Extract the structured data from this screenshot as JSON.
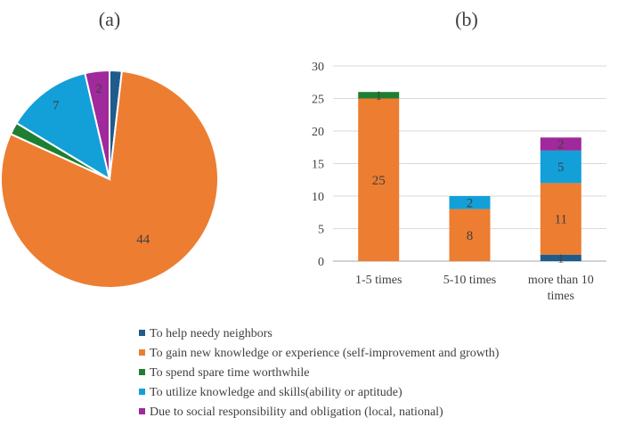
{
  "colors": {
    "navy": "#1F5C8B",
    "orange": "#ED7D31",
    "green": "#1E7F33",
    "cyan": "#13A0D8",
    "magenta": "#A0299B",
    "axis": "#A6A6A6",
    "grid": "#D9D9D9",
    "text": "#404040"
  },
  "chart_data": [
    {
      "type": "pie",
      "title": "(a)",
      "labels": [
        "To help needy neighbors",
        "To gain new knowledge or experience (self-improvement and growth)",
        "To spend spare time worthwhile",
        "To utilize knowledge and skills(ability or aptitude)",
        "Due to social responsibility and obligation (local, national)"
      ],
      "values": [
        1,
        44,
        1,
        7,
        2
      ],
      "data_labels": [
        "",
        "44",
        "",
        "7",
        "2"
      ],
      "colors": [
        "#1F5C8B",
        "#ED7D31",
        "#1E7F33",
        "#13A0D8",
        "#A0299B"
      ]
    },
    {
      "type": "bar",
      "stacked": true,
      "title": "(b)",
      "categories": [
        "1-5 times",
        "5-10 times",
        "more than 10 times"
      ],
      "category_lines": [
        [
          "1-5 times"
        ],
        [
          "5-10 times"
        ],
        [
          "more than 10",
          "times"
        ]
      ],
      "ylim": [
        0,
        30
      ],
      "yticks": [
        0,
        5,
        10,
        15,
        20,
        25,
        30
      ],
      "series": [
        {
          "name": "To help needy neighbors",
          "color": "#1F5C8B",
          "values": [
            0,
            0,
            1
          ],
          "labels": [
            "",
            "",
            "1"
          ]
        },
        {
          "name": "To gain new knowledge or experience (self-improvement and growth)",
          "color": "#ED7D31",
          "values": [
            25,
            8,
            11
          ],
          "labels": [
            "25",
            "8",
            "11"
          ]
        },
        {
          "name": "To spend spare time worthwhile",
          "color": "#1E7F33",
          "values": [
            1,
            0,
            0
          ],
          "labels": [
            "1",
            "",
            ""
          ]
        },
        {
          "name": "To utilize knowledge and skills(ability or aptitude)",
          "color": "#13A0D8",
          "values": [
            0,
            2,
            5
          ],
          "labels": [
            "",
            "2",
            "5"
          ]
        },
        {
          "name": "Due to social responsibility and obligation (local, national)",
          "color": "#A0299B",
          "values": [
            0,
            0,
            2
          ],
          "labels": [
            "",
            "",
            "2"
          ]
        }
      ]
    }
  ],
  "legend": {
    "placement": "bottom",
    "items": [
      {
        "label": "To help needy neighbors",
        "color": "#1F5C8B"
      },
      {
        "label": "To gain new knowledge or experience (self-improvement and growth)",
        "color": "#ED7D31"
      },
      {
        "label": "To spend spare time worthwhile",
        "color": "#1E7F33"
      },
      {
        "label": "To utilize knowledge and skills(ability or aptitude)",
        "color": "#13A0D8"
      },
      {
        "label": "Due to social responsibility and obligation (local, national)",
        "color": "#A0299B"
      }
    ]
  }
}
